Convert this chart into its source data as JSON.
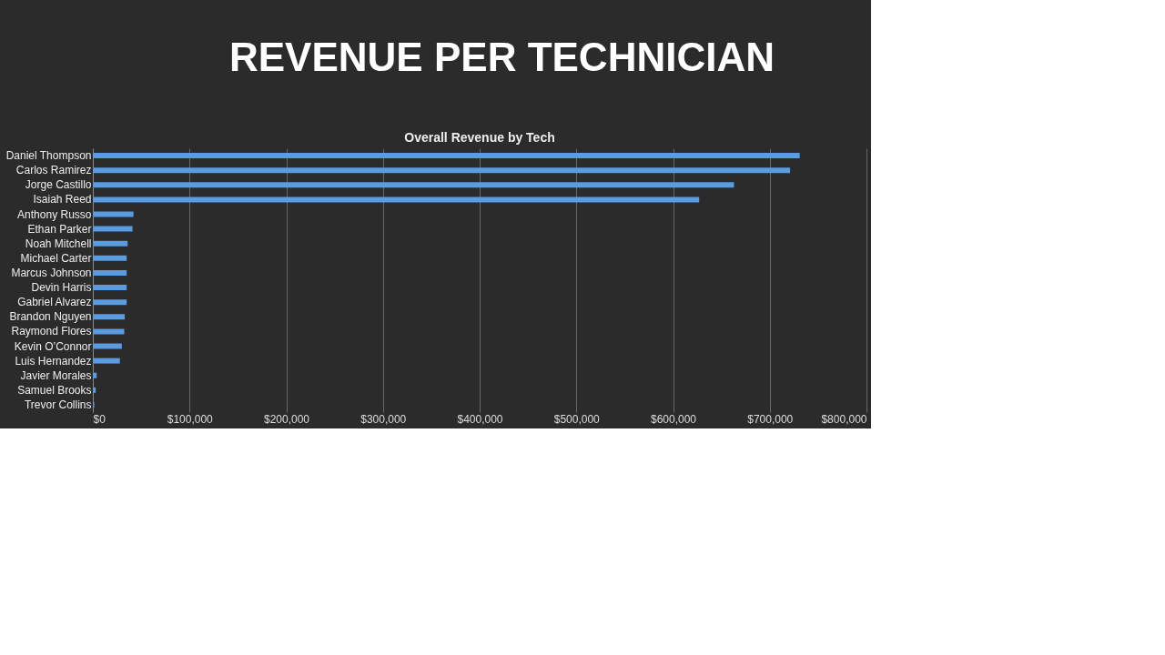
{
  "chart_data": {
    "type": "bar",
    "orientation": "horizontal",
    "title": "Overall Revenue by Tech",
    "annotations": [
      "REVENUE PER TECHNICIAN"
    ],
    "categories": [
      "Daniel Thompson",
      "Carlos Ramirez",
      "Jorge Castillo",
      "Isaiah Reed",
      "Anthony Russo",
      "Ethan Parker",
      "Noah Mitchell",
      "Michael Carter",
      "Marcus Johnson",
      "Devin Harris",
      "Gabriel Alvarez",
      "Brandon Nguyen",
      "Raymond Flores",
      "Kevin O’Connor",
      "Luis Hernandez",
      "Javier Morales",
      "Samuel Brooks",
      "Trevor Collins"
    ],
    "values": [
      731000,
      721000,
      663000,
      627000,
      42000,
      41000,
      36000,
      35000,
      35000,
      35000,
      35000,
      33000,
      32500,
      30000,
      28000,
      4000,
      3000,
      1500
    ],
    "color": "#5b9be0",
    "xlim": [
      0,
      800000
    ],
    "xticks": [
      {
        "value": 0,
        "label": "$0"
      },
      {
        "value": 100000,
        "label": "$100,000"
      },
      {
        "value": 200000,
        "label": "$200,000"
      },
      {
        "value": 300000,
        "label": "$300,000"
      },
      {
        "value": 400000,
        "label": "$400,000"
      },
      {
        "value": 500000,
        "label": "$500,000"
      },
      {
        "value": 600000,
        "label": "$600,000"
      },
      {
        "value": 700000,
        "label": "$700,000"
      },
      {
        "value": 800000,
        "label": "$800,000"
      }
    ],
    "grid": "x"
  }
}
